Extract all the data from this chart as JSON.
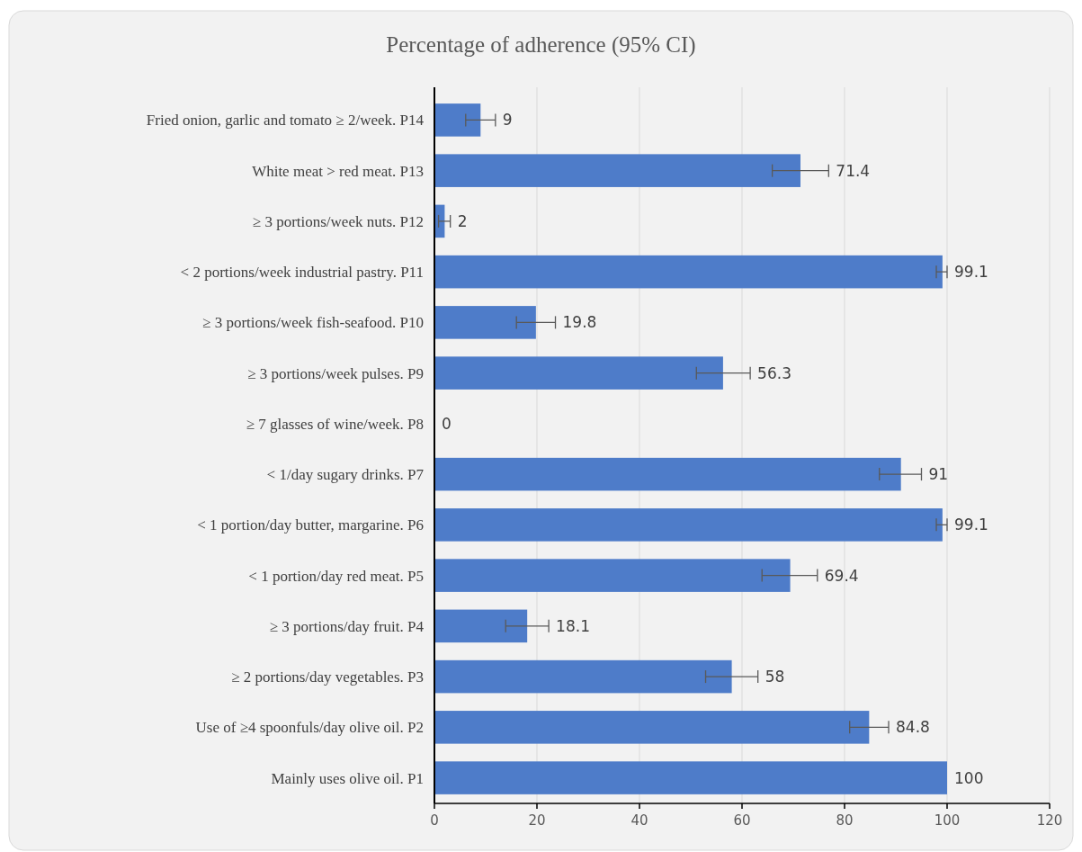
{
  "chart_data": {
    "type": "bar",
    "orientation": "horizontal",
    "title": "Percentage of adherence (95% CI)",
    "categories": [
      "Fried onion, garlic  and tomato ≥ 2/week. P14",
      "White meat > red meat. P13",
      "≥ 3 portions/week nuts. P12",
      "< 2 portions/week industrial pastry. P11",
      "≥ 3 portions/week fish-seafood. P10",
      "≥ 3 portions/week pulses. P9",
      "≥ 7 glasses of wine/week.  P8",
      "< 1/day sugary drinks. P7",
      "< 1 portion/day butter, margarine. P6",
      "< 1 portion/day red meat.  P5",
      "≥ 3 portions/day fruit. P4",
      "≥ 2 portions/day vegetables. P3",
      "Use of ≥4 spoonfuls/day olive oil. P2",
      "Mainly uses olive oil. P1"
    ],
    "values": [
      9,
      71.4,
      2,
      99.1,
      19.8,
      56.3,
      0,
      91,
      99.1,
      69.4,
      18.1,
      58,
      84.8,
      100
    ],
    "errors": [
      [
        6.1,
        11.9
      ],
      [
        65.9,
        76.9
      ],
      [
        0.8,
        3.1
      ],
      [
        97.9,
        100
      ],
      [
        16,
        23.6
      ],
      [
        51.1,
        61.6
      ],
      null,
      [
        86.8,
        95
      ],
      [
        97.9,
        100
      ],
      [
        63.9,
        74.7
      ],
      [
        13.9,
        22.3
      ],
      [
        52.9,
        63.1
      ],
      [
        81,
        88.6
      ],
      null
    ],
    "color": "#4e7cc9",
    "data_labels": true,
    "grid": "x",
    "xlim": [
      0,
      120
    ],
    "xticks": [
      0,
      20,
      40,
      60,
      80,
      100,
      120
    ]
  }
}
